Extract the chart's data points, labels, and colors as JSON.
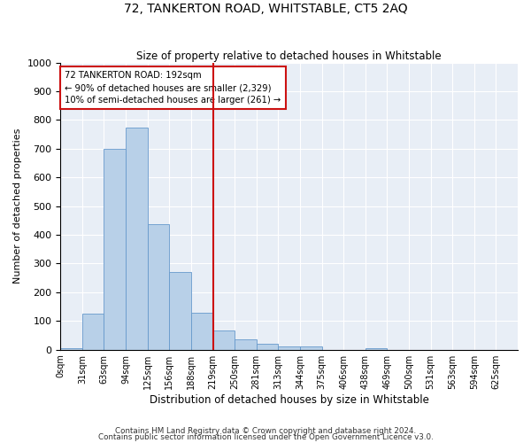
{
  "title": "72, TANKERTON ROAD, WHITSTABLE, CT5 2AQ",
  "subtitle": "Size of property relative to detached houses in Whitstable",
  "xlabel": "Distribution of detached houses by size in Whitstable",
  "ylabel": "Number of detached properties",
  "bin_labels": [
    "0sqm",
    "31sqm",
    "63sqm",
    "94sqm",
    "125sqm",
    "156sqm",
    "188sqm",
    "219sqm",
    "250sqm",
    "281sqm",
    "313sqm",
    "344sqm",
    "375sqm",
    "406sqm",
    "438sqm",
    "469sqm",
    "500sqm",
    "531sqm",
    "563sqm",
    "594sqm",
    "625sqm"
  ],
  "bin_values": [
    5,
    125,
    700,
    775,
    438,
    270,
    130,
    68,
    37,
    20,
    10,
    10,
    0,
    0,
    5,
    0,
    0,
    0,
    0,
    0,
    0
  ],
  "bar_color": "#b8d0e8",
  "bar_edge_color": "#6699cc",
  "vline_color": "#cc1111",
  "vline_x_index": 7,
  "annotation_text": "72 TANKERTON ROAD: 192sqm\n← 90% of detached houses are smaller (2,329)\n10% of semi-detached houses are larger (261) →",
  "annotation_box_color": "#cc1111",
  "ylim": [
    0,
    1000
  ],
  "yticks": [
    0,
    100,
    200,
    300,
    400,
    500,
    600,
    700,
    800,
    900,
    1000
  ],
  "bg_color": "#e8eef6",
  "footnote1": "Contains HM Land Registry data © Crown copyright and database right 2024.",
  "footnote2": "Contains public sector information licensed under the Open Government Licence v3.0."
}
